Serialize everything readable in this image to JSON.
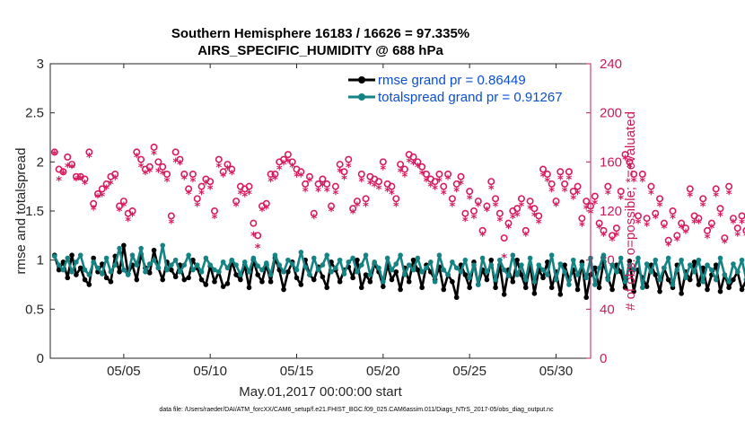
{
  "chart_data": {
    "type": "line",
    "title_line1": "Southern Hemisphere 16183 / 16626 = 97.335%",
    "title_line2": "AIRS_SPECIFIC_HUMIDITY @ 688 hPa",
    "xlabel": "May.01,2017 00:00:00 start",
    "ylabel_left": "rmse and totalspread",
    "ylabel_right": "# of obs: o=possible; *=evaluated",
    "footnote": "data file: /Users/raeder/DAI/ATM_forcXX/CAM6_setup/f.e21.FHIST_BGC.f09_025.CAM6assim.011/Diags_NTrS_2017-05/obs_diag_output.nc",
    "xlim": [
      0.75,
      32.0
    ],
    "ylim_left": [
      0,
      3
    ],
    "ylim_right": [
      0,
      240
    ],
    "x_ticks": [
      5,
      10,
      15,
      20,
      25,
      30
    ],
    "x_tick_labels": [
      "05/05",
      "05/10",
      "05/15",
      "05/20",
      "05/25",
      "05/30"
    ],
    "y_ticks_left": [
      0,
      0.5,
      1,
      1.5,
      2,
      2.5,
      3
    ],
    "y_tick_labels_left": [
      "0",
      "0.5",
      "1",
      "1.5",
      "2",
      "2.5",
      "3"
    ],
    "y_ticks_right": [
      0,
      40,
      80,
      120,
      160,
      200,
      240
    ],
    "y_tick_labels_right": [
      "0",
      "40",
      "80",
      "120",
      "160",
      "200",
      "240"
    ],
    "legend_position": "top-right",
    "x_start": 1.0,
    "x_step": 0.25,
    "series": [
      {
        "name": "rmse grand pr = 0.86449",
        "color": "#000000",
        "axis": "left",
        "values": [
          1.05,
          0.9,
          0.98,
          0.82,
          1.05,
          0.85,
          0.92,
          0.8,
          0.75,
          1.02,
          0.88,
          0.96,
          0.82,
          0.78,
          1.04,
          0.88,
          1.15,
          0.86,
          0.95,
          0.8,
          1.06,
          0.92,
          0.87,
          1.1,
          0.92,
          0.8,
          0.98,
          0.9,
          0.83,
          0.95,
          0.8,
          0.82,
          1.0,
          0.92,
          0.8,
          0.75,
          0.94,
          0.78,
          0.88,
          0.73,
          0.76,
          0.99,
          0.85,
          0.8,
          0.95,
          0.72,
          1.0,
          0.85,
          0.78,
          0.95,
          0.78,
          1.02,
          0.9,
          0.7,
          0.88,
          0.98,
          0.82,
          0.75,
          1.0,
          0.85,
          0.8,
          0.93,
          0.83,
          0.72,
          0.98,
          0.9,
          0.78,
          0.9,
          0.93,
          0.82,
          1.0,
          0.72,
          0.85,
          0.78,
          0.96,
          0.88,
          0.73,
          0.95,
          0.8,
          0.88,
          0.7,
          0.92,
          0.78,
          1.0,
          0.9,
          0.72,
          0.95,
          0.88,
          0.8,
          0.93,
          0.7,
          0.85,
          0.78,
          0.62,
          0.95,
          0.85,
          0.72,
          0.98,
          0.75,
          0.9,
          0.8,
          1.0,
          0.72,
          0.95,
          0.65,
          0.9,
          0.78,
          1.0,
          0.85,
          0.72,
          0.95,
          0.66,
          0.9,
          0.82,
          0.98,
          0.72,
          0.88,
          0.65,
          0.95,
          0.8,
          0.9,
          0.7,
          0.98,
          0.62,
          0.85,
          0.92,
          0.72,
          0.98,
          0.82,
          0.7,
          0.95,
          0.88,
          0.72,
          0.99,
          0.68,
          0.9,
          0.82,
          0.73,
          0.95,
          0.85,
          0.68,
          0.92,
          0.8,
          0.72,
          0.95,
          0.66,
          0.88,
          0.8,
          0.98,
          0.75,
          0.92,
          0.7,
          0.85,
          0.95,
          0.68,
          0.85,
          0.72,
          0.8,
          0.88,
          0.7,
          0.8,
          0.75,
          0.9,
          0.82,
          0.65,
          0.9,
          0.82,
          1.0,
          0.85,
          0.72,
          0.98,
          0.78
        ]
      },
      {
        "name": "totalspread grand pr = 0.91267",
        "color": "#158383",
        "axis": "left",
        "values": [
          1.04,
          0.95,
          0.9,
          1.02,
          0.88,
          0.98,
          1.05,
          0.9,
          0.85,
          0.98,
          0.92,
          0.86,
          1.02,
          0.88,
          0.95,
          1.12,
          0.9,
          0.85,
          1.05,
          0.95,
          1.12,
          0.88,
          0.96,
          1.0,
          0.92,
          1.15,
          0.9,
          0.95,
          1.0,
          0.88,
          0.95,
          1.05,
          0.9,
          0.95,
          0.88,
          1.02,
          0.95,
          0.9,
          0.88,
          0.98,
          0.92,
          1.0,
          0.95,
          0.85,
          0.98,
          0.88,
          1.02,
          0.94,
          0.9,
          0.97,
          0.85,
          1.05,
          0.95,
          0.88,
          1.0,
          0.96,
          0.9,
          1.08,
          0.93,
          0.85,
          1.02,
          0.9,
          0.95,
          1.05,
          0.88,
          0.92,
          1.0,
          0.86,
          0.98,
          1.02,
          0.88,
          0.95,
          1.05,
          0.85,
          0.98,
          0.92,
          0.78,
          1.02,
          0.9,
          0.96,
          1.05,
          0.85,
          0.95,
          0.9,
          1.02,
          0.88,
          0.92,
          0.98,
          0.78,
          1.05,
          0.9,
          0.85,
          0.98,
          0.92,
          0.88,
          1.0,
          0.82,
          0.95,
          0.75,
          1.02,
          0.88,
          0.95,
          0.8,
          1.0,
          0.9,
          0.84,
          1.05,
          0.85,
          0.95,
          0.8,
          1.02,
          0.78,
          0.95,
          0.9,
          0.85,
          1.05,
          0.8,
          0.96,
          0.88,
          0.75,
          1.0,
          0.85,
          0.95,
          0.82,
          1.02,
          0.75,
          0.92,
          1.05,
          0.8,
          0.95,
          0.88,
          1.02,
          0.78,
          0.95,
          0.9,
          1.02,
          0.72,
          0.96,
          0.88,
          1.0,
          0.8,
          0.92,
          1.02,
          0.75,
          0.9,
          1.0,
          0.82,
          0.95,
          0.88,
          1.0,
          0.78,
          0.95,
          0.9,
          0.8,
          1.02,
          0.85,
          0.78,
          0.96,
          0.88,
          1.0,
          0.8,
          0.92,
          0.85,
          0.95,
          1.0,
          0.8,
          0.92,
          0.85,
          0.95,
          0.88,
          1.15,
          0.8,
          0.92,
          0.7,
          1.12,
          0.76
        ]
      },
      {
        "name": "possible obs (o)",
        "color": "#d81b60",
        "axis": "right",
        "marker": "o",
        "values": [
          168,
          154,
          152,
          164,
          158,
          148,
          148,
          146,
          168,
          126,
          134,
          138,
          142,
          148,
          150,
          124,
          128,
          118,
          120,
          168,
          162,
          154,
          156,
          172,
          160,
          156,
          150,
          116,
          168,
          162,
          150,
          138,
          150,
          130,
          140,
          146,
          144,
          120,
          162,
          152,
          158,
          154,
          128,
          140,
          138,
          140,
          110,
          100,
          124,
          126,
          150,
          150,
          160,
          162,
          166,
          160,
          154,
          152,
          142,
          148,
          118,
          142,
          146,
          142,
          124,
          140,
          158,
          152,
          162,
          122,
          128,
          150,
          130,
          148,
          146,
          144,
          160,
          142,
          140,
          130,
          158,
          154,
          166,
          164,
          160,
          156,
          150,
          146,
          144,
          150,
          140,
          150,
          130,
          142,
          148,
          118,
          136,
          120,
          128,
          104,
          124,
          144,
          130,
          118,
          98,
          110,
          120,
          122,
          130,
          104,
          128,
          122,
          116,
          154,
          150,
          142,
          128,
          152,
          142,
          152,
          136,
          140,
          114,
          128,
          124,
          132,
          110,
          104,
          140,
          100,
          106,
          136,
          166,
          160,
          150,
          116,
          150,
          114,
          140,
          118,
          130,
          110,
          96,
          120,
          100,
          110,
          106,
          138,
          116,
          114,
          130,
          104,
          110,
          138,
          122,
          98,
          140,
          114,
          106,
          116,
          104,
          118,
          122,
          138,
          130,
          100,
          114,
          106,
          108,
          98,
          122,
          110,
          120,
          128,
          126,
          120
        ]
      },
      {
        "name": "evaluated obs (*)",
        "color": "#d81b60",
        "axis": "right",
        "marker": "*",
        "values": [
          166,
          145,
          150,
          156,
          155,
          145,
          146,
          142,
          164,
          121,
          131,
          132,
          138,
          142,
          146,
          120,
          124,
          112,
          116,
          164,
          156,
          150,
          152,
          166,
          152,
          150,
          144,
          110,
          160,
          158,
          146,
          134,
          144,
          124,
          134,
          142,
          138,
          114,
          156,
          148,
          154,
          150,
          124,
          134,
          132,
          134,
          100,
          90,
          120,
          122,
          144,
          146,
          154,
          158,
          160,
          156,
          148,
          148,
          136,
          144,
          114,
          136,
          140,
          136,
          120,
          134,
          152,
          146,
          156,
          118,
          124,
          144,
          124,
          142,
          140,
          138,
          154,
          136,
          134,
          124,
          152,
          148,
          160,
          158,
          156,
          150,
          144,
          140,
          138,
          144,
          134,
          146,
          124,
          136,
          142,
          112,
          130,
          114,
          124,
          100,
          120,
          138,
          124,
          112,
          82,
          106,
          114,
          116,
          124,
          100,
          122,
          116,
          110,
          148,
          144,
          136,
          124,
          146,
          136,
          146,
          130,
          134,
          108,
          122,
          118,
          126,
          106,
          100,
          134,
          96,
          100,
          130,
          162,
          156,
          144,
          110,
          144,
          108,
          134,
          114,
          124,
          106,
          92,
          114,
          96,
          106,
          102,
          132,
          110,
          110,
          124,
          98,
          106,
          132,
          116,
          94,
          134,
          110,
          100,
          110,
          100,
          112,
          118,
          132,
          124,
          96,
          110,
          100,
          104,
          94,
          116,
          104,
          116,
          122,
          120,
          116
        ]
      }
    ]
  }
}
